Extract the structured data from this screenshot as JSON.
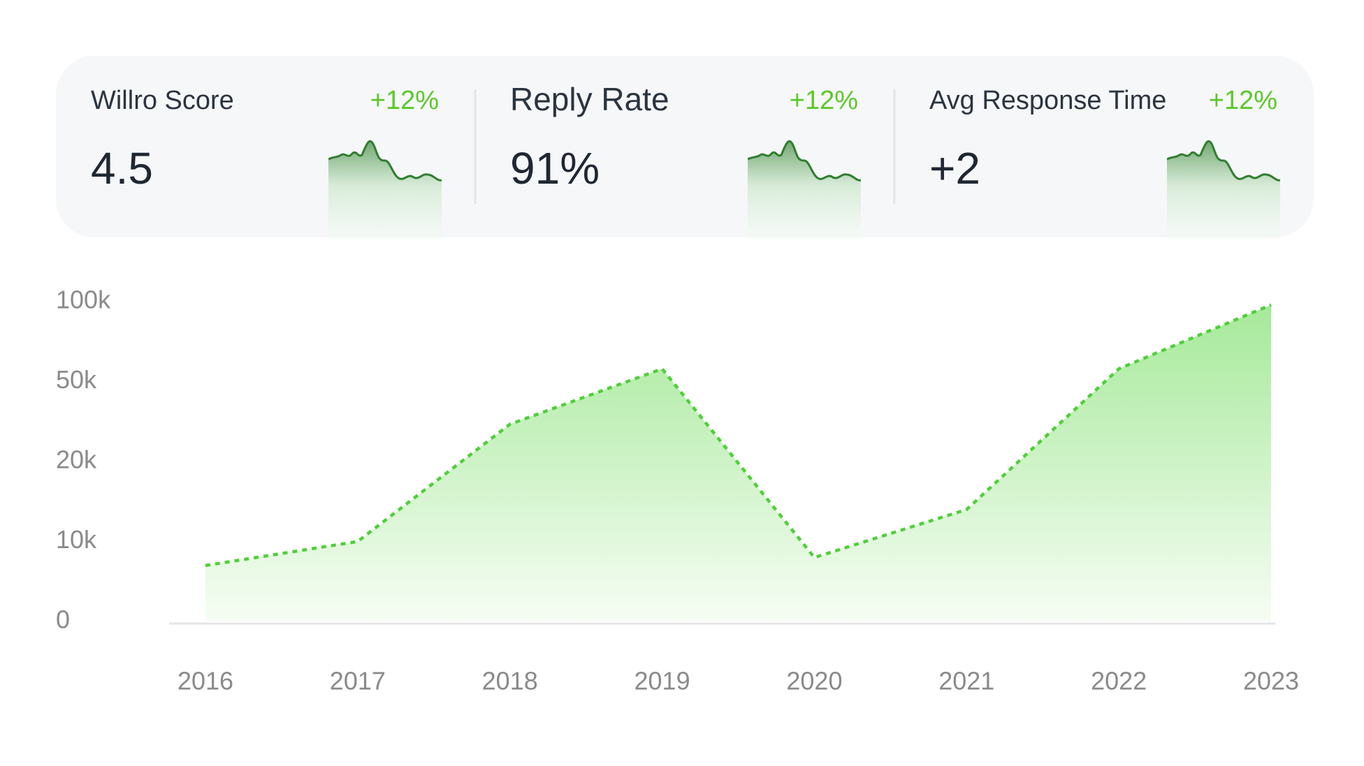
{
  "kpis": [
    {
      "label": "Willro Score",
      "change": "+12%",
      "value": "4.5"
    },
    {
      "label": "Reply Rate",
      "change": "+12%",
      "value": "91%"
    },
    {
      "label": "Avg Response Time",
      "change": "+12%",
      "value": "+2"
    }
  ],
  "chart_data": {
    "type": "area",
    "categories": [
      "2016",
      "2017",
      "2018",
      "2019",
      "2020",
      "2021",
      "2022",
      "2023"
    ],
    "values": [
      7000,
      10000,
      34000,
      58000,
      8000,
      14000,
      58000,
      98000
    ],
    "color": "#4fcf3a",
    "ylim": [
      0,
      100000
    ],
    "yticks": [
      0,
      {
        "value": 10000,
        "label": "10k"
      },
      {
        "value": 20000,
        "label": "20k"
      },
      {
        "value": 50000,
        "label": "50k"
      },
      {
        "value": 100000,
        "label": "100k"
      }
    ]
  }
}
